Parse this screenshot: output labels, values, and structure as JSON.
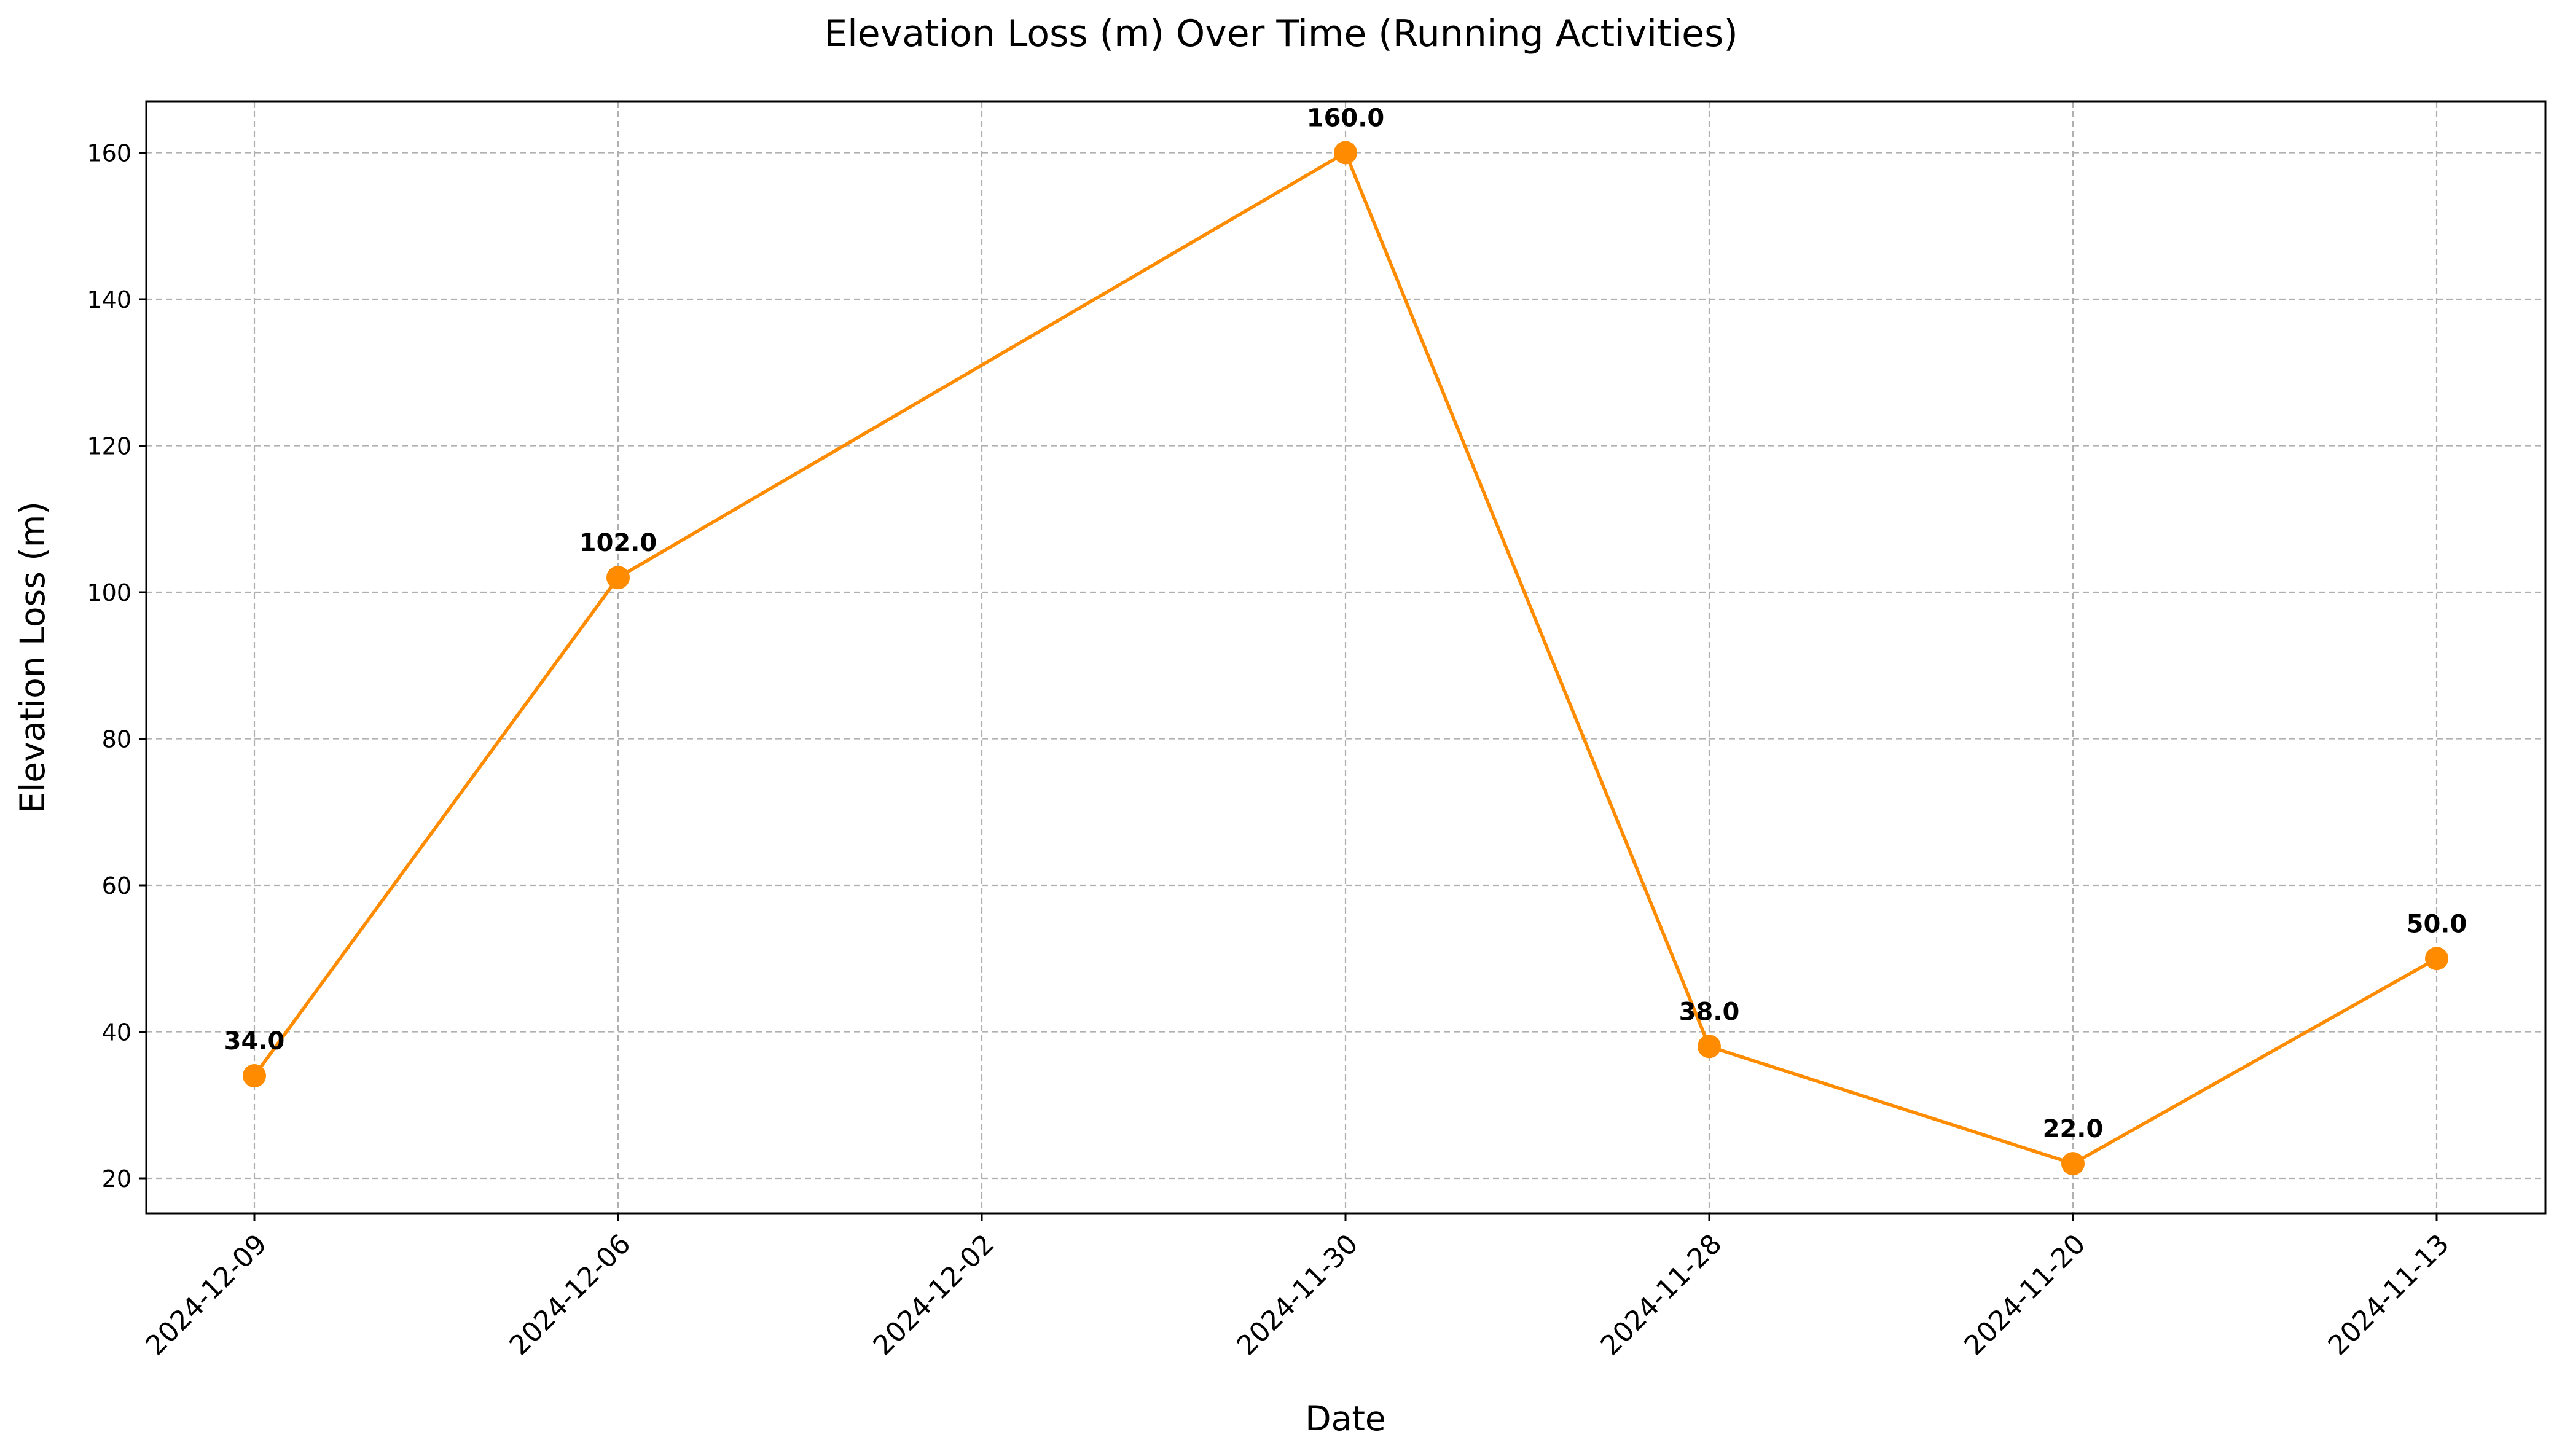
{
  "chart_data": {
    "type": "line",
    "title": "Elevation Loss (m) Over Time (Running Activities)",
    "xlabel": "Date",
    "ylabel": "Elevation Loss (m)",
    "categories": [
      "2024-12-09",
      "2024-12-06",
      "2024-12-02",
      "2024-11-30",
      "2024-11-28",
      "2024-11-20",
      "2024-11-13"
    ],
    "series": [
      {
        "values": [
          34.0,
          102.0,
          null,
          160.0,
          38.0,
          22.0,
          50.0
        ],
        "labels": [
          "34.0",
          "102.0",
          null,
          "160.0",
          "38.0",
          "22.0",
          "50.0"
        ],
        "color": "#ff8c00"
      }
    ],
    "ylim": [
      15,
      167
    ],
    "yticks": [
      20,
      40,
      60,
      80,
      100,
      120,
      140,
      160
    ],
    "grid": true
  }
}
